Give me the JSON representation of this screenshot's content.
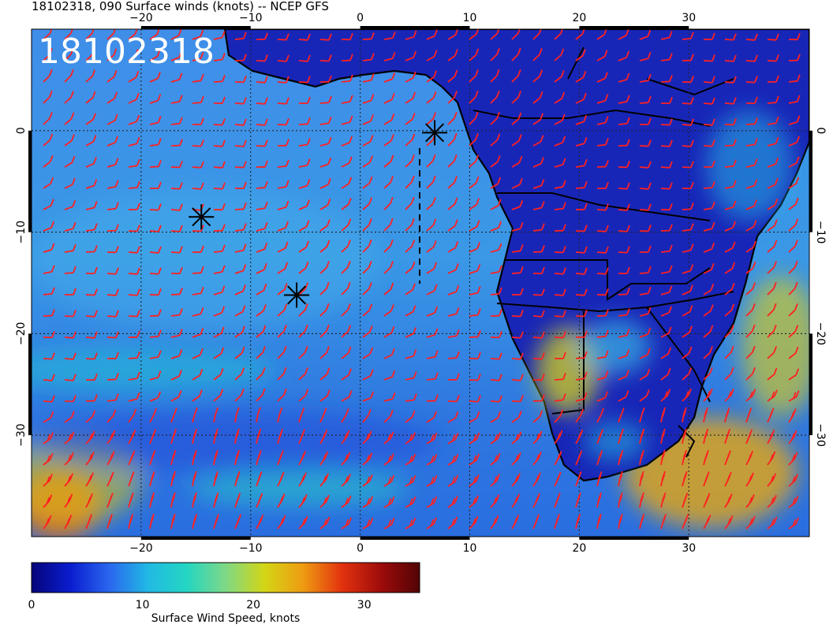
{
  "title": "18102318, 090 Surface winds (knots) -- NCEP GFS",
  "stamp": "18102318",
  "map": {
    "lon_ticks": [
      "−20",
      "−10",
      "0",
      "10",
      "20",
      "30"
    ],
    "lat_ticks": [
      "0",
      "−10",
      "−20",
      "−30"
    ],
    "lon_range": [
      -30,
      41
    ],
    "lat_range": [
      -40,
      10
    ],
    "grid": "dotted",
    "barb_color": "#ff2020",
    "storm_markers_latlon": [
      [
        -8.5,
        -14.5
      ],
      [
        -16.2,
        -5.8
      ],
      [
        -0.2,
        6.8
      ]
    ]
  },
  "colorbar": {
    "ticks": [
      "0",
      "10",
      "20",
      "30"
    ],
    "tick_values": [
      0,
      10,
      20,
      30
    ],
    "range": [
      0,
      35
    ],
    "label": "Surface Wind Speed, knots",
    "colors": [
      "#06047a",
      "#0a1dcf",
      "#2a66ee",
      "#21b9e4",
      "#24d6c3",
      "#7ed886",
      "#d3d616",
      "#ef9b12",
      "#e2320e",
      "#9e0c0b",
      "#520305"
    ]
  }
}
